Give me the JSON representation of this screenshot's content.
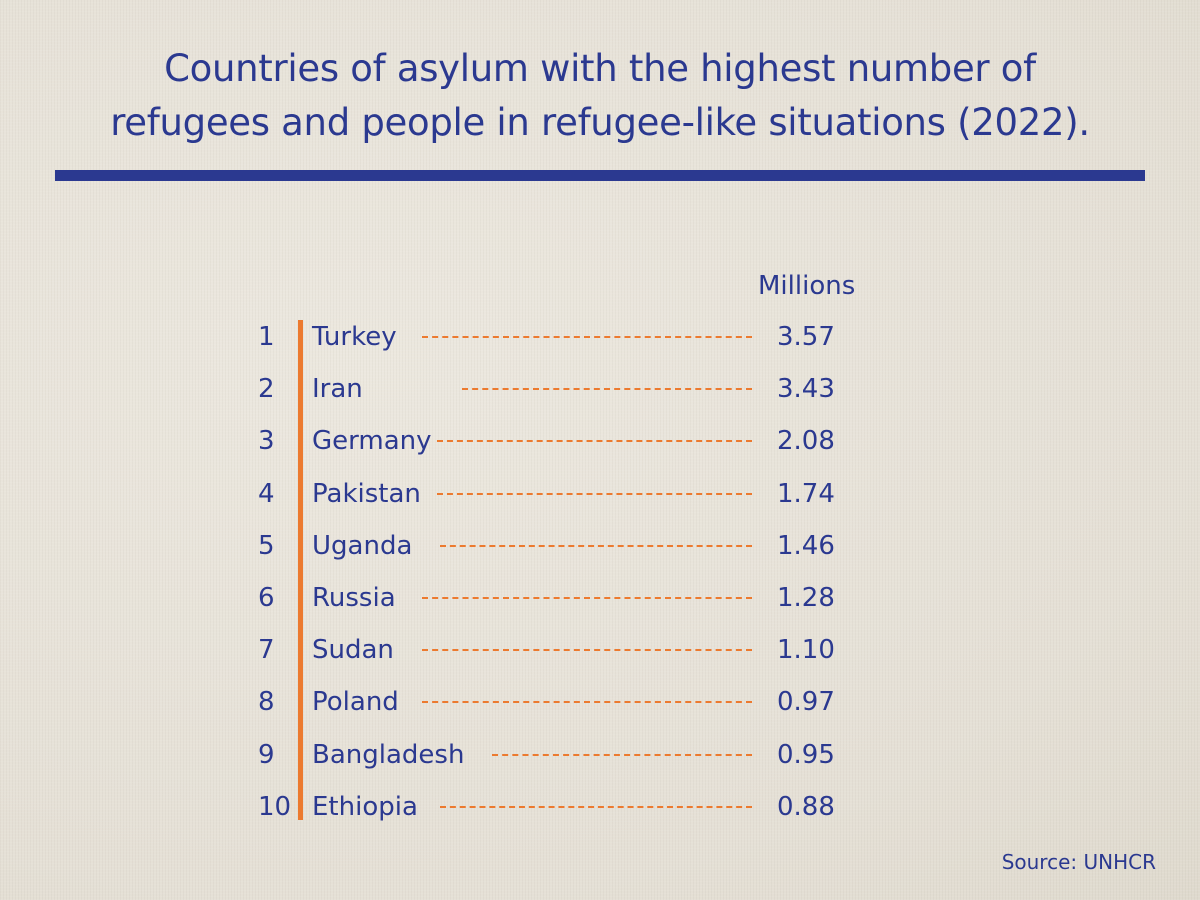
{
  "chart_data": {
    "type": "table",
    "title_lines": [
      "Countries of asylum with the highest number of",
      "refugees and people in refugee-like situations (2022)."
    ],
    "unit_label": "Millions",
    "rows": [
      {
        "rank": "1",
        "country": "Turkey",
        "value": "3.57"
      },
      {
        "rank": "2",
        "country": "Iran",
        "value": "3.43"
      },
      {
        "rank": "3",
        "country": "Germany",
        "value": "2.08"
      },
      {
        "rank": "4",
        "country": "Pakistan",
        "value": "1.74"
      },
      {
        "rank": "5",
        "country": "Uganda",
        "value": "1.46"
      },
      {
        "rank": "6",
        "country": "Russia",
        "value": "1.28"
      },
      {
        "rank": "7",
        "country": "Sudan",
        "value": "1.10"
      },
      {
        "rank": "8",
        "country": "Poland",
        "value": "0.97"
      },
      {
        "rank": "9",
        "country": "Bangladesh",
        "value": "0.95"
      },
      {
        "rank": "10",
        "country": "Ethiopia",
        "value": "0.88"
      }
    ],
    "source": "Source: UNHCR",
    "colors": {
      "text": "#2b3990",
      "accent": "#ec7a2f",
      "background": "#e9e5dc"
    }
  }
}
